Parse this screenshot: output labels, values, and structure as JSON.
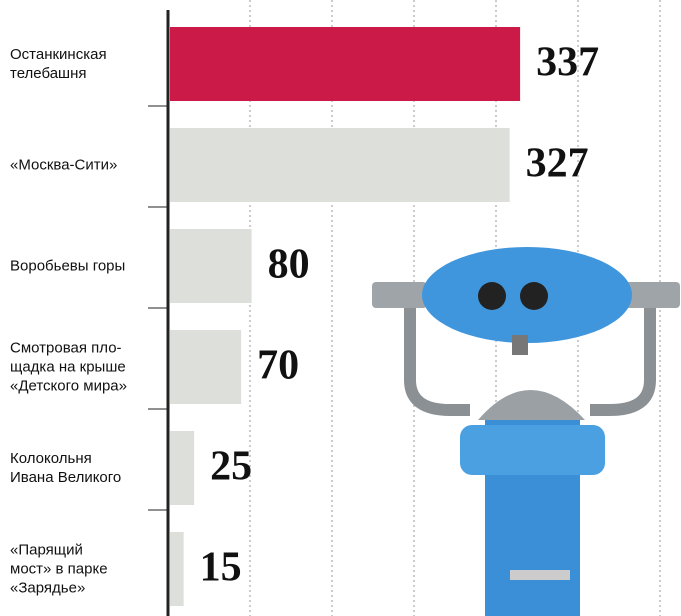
{
  "chart_data": {
    "type": "bar",
    "orientation": "horizontal",
    "categories": [
      "Останкинская\nтелебашня",
      "«Москва-Сити»",
      "Воробьевы горы",
      "Смотровая пло-\nщадка на крыше\n«Детского мира»",
      "Колокольня\nИвана Великого",
      "«Парящий\nмост» в парке\n«Зарядье»"
    ],
    "values": [
      337,
      327,
      80,
      70,
      25,
      15
    ],
    "colors": [
      "#cc1a48",
      "#dcdfda",
      "#dcdfda",
      "#dcdfda",
      "#dcdfda",
      "#dcdfda"
    ],
    "xlim": [
      0,
      491
    ]
  }
}
